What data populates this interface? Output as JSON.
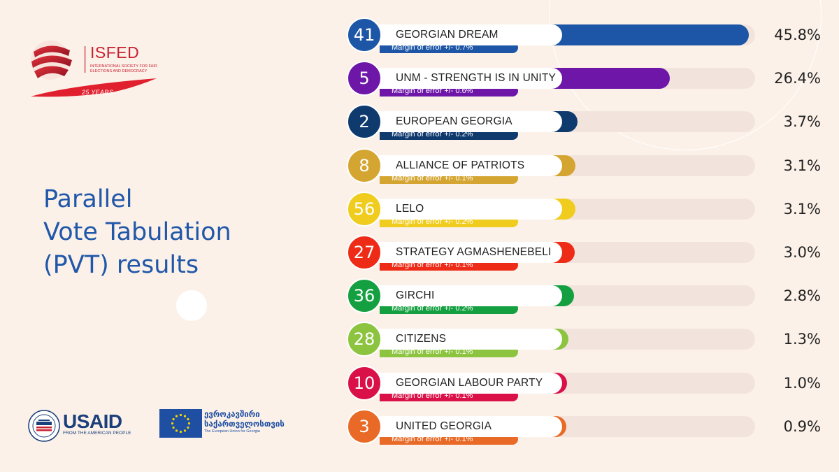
{
  "logo": {
    "name": "ISFED",
    "subtitle": "INTERNATIONAL SOCIETY FOR FAIR ELECTIONS AND DEMOCRACY",
    "years": "25 YEARS"
  },
  "title_lines": [
    "Parallel",
    "Vote Tabulation",
    "(PVT) results"
  ],
  "footer": {
    "usaid_name": "USAID",
    "usaid_tagline": "FROM THE AMERICAN PEOPLE",
    "eu_text_ka_line1": "ევროკავშირი",
    "eu_text_ka_line2": "საქართველოსთვის",
    "eu_text_en": "The European Union for Georgia"
  },
  "chart_data": {
    "type": "bar",
    "orientation": "horizontal",
    "xlim": [
      0,
      50
    ],
    "categories": [
      "GEORGIAN DREAM",
      "UNM - STRENGTH IS IN UNITY",
      "EUROPEAN GEORGIA",
      "ALLIANCE OF PATRIOTS",
      "LELO",
      "STRATEGY AGMASHENEBELI",
      "GIRCHI",
      "CITIZENS",
      "GEORGIAN LABOUR PARTY",
      "UNITED GEORGIA"
    ],
    "values": [
      45.8,
      26.4,
      3.7,
      3.1,
      3.1,
      3.0,
      2.8,
      1.3,
      1.0,
      0.9
    ],
    "value_labels": [
      "45.8%",
      "26.4%",
      "3.7%",
      "3.1%",
      "3.1%",
      "3.0%",
      "2.8%",
      "1.3%",
      "1.0%",
      "0.9%"
    ],
    "party_numbers": [
      "41",
      "5",
      "2",
      "8",
      "56",
      "27",
      "36",
      "28",
      "10",
      "3"
    ],
    "margins_of_error": [
      "Margin of error +/- 0.7%",
      "Margin of error +/- 0.6%",
      "Margin of error +/- 0.2%",
      "Margin of error +/- 0.1%",
      "Margin of error +/- 0.2%",
      "Margin of error +/- 0.1%",
      "Margin of error +/- 0.2%",
      "Margin of error +/- 0.1%",
      "Margin of error +/- 0.1%",
      "Margin of error +/- 0.1%"
    ],
    "colors": [
      "#1d56a6",
      "#6d16a8",
      "#0f3a6e",
      "#d4a530",
      "#f0cc1e",
      "#ee2b16",
      "#14a040",
      "#8cc43f",
      "#d91148",
      "#e86a26"
    ]
  }
}
